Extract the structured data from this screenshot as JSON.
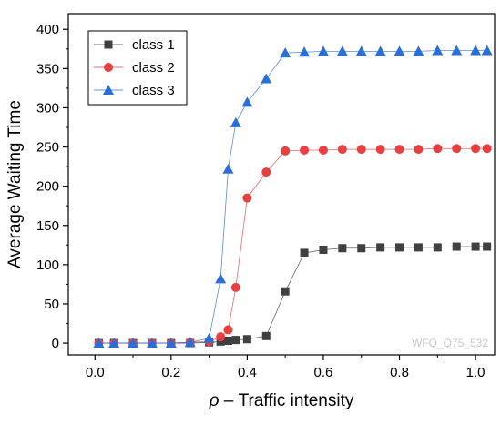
{
  "chart_data": {
    "type": "line",
    "xlabel_symbol": "ρ",
    "xlabel_text": " – Traffic intensity",
    "ylabel": "Average Waiting Time",
    "xlim": [
      -0.07,
      1.05
    ],
    "ylim": [
      -15,
      420
    ],
    "x_ticks": [
      0.0,
      0.2,
      0.4,
      0.6,
      0.8,
      1.0
    ],
    "x_tick_labels": [
      "0.0",
      "0.2",
      "0.4",
      "0.6",
      "0.8",
      "1.0"
    ],
    "y_ticks": [
      0,
      50,
      100,
      150,
      200,
      250,
      300,
      350,
      400
    ],
    "y_tick_labels": [
      "0",
      "50",
      "100",
      "150",
      "200",
      "250",
      "300",
      "350",
      "400"
    ],
    "grid": false,
    "legend_position": "top-left",
    "watermark": "WFQ_Q75_532",
    "x": [
      0.01,
      0.05,
      0.1,
      0.15,
      0.2,
      0.25,
      0.3,
      0.33,
      0.35,
      0.37,
      0.4,
      0.45,
      0.5,
      0.55,
      0.6,
      0.65,
      0.7,
      0.75,
      0.8,
      0.85,
      0.9,
      0.95,
      1.0,
      1.03
    ],
    "series": [
      {
        "name": "class 1",
        "marker": "square",
        "color": "#404040",
        "values": [
          0,
          0,
          0,
          0,
          0,
          0,
          1,
          2,
          3,
          4,
          5,
          9,
          66,
          115,
          119,
          121,
          121,
          122,
          122,
          122,
          122,
          123,
          123,
          123
        ]
      },
      {
        "name": "class 2",
        "marker": "circle",
        "color": "#e84040",
        "values": [
          0,
          0,
          0,
          0,
          0,
          1,
          2,
          8,
          17,
          71,
          185,
          218,
          245,
          246,
          246,
          247,
          247,
          247,
          247,
          247,
          248,
          248,
          248,
          248
        ]
      },
      {
        "name": "class 3",
        "marker": "triangle",
        "color": "#2a6fd6",
        "values": [
          0,
          0,
          0,
          0,
          0,
          1,
          6,
          82,
          222,
          281,
          307,
          337,
          370,
          371,
          372,
          372,
          372,
          372,
          372,
          372,
          373,
          373,
          373,
          373
        ]
      }
    ]
  }
}
